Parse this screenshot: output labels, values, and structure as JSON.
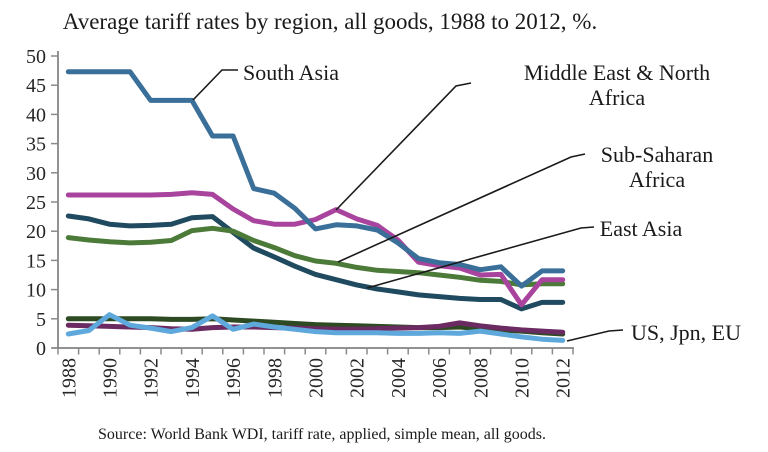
{
  "title": "Average tariff rates by region, all goods, 1988 to 2012, %.",
  "source": "Source: World Bank WDI, tariff rate, applied, simple mean, all goods.",
  "y_axis": {
    "tick_labels": [
      "0",
      "5",
      "10",
      "15",
      "20",
      "25",
      "30",
      "35",
      "40",
      "45",
      "50"
    ],
    "min": 0,
    "max": 50,
    "step": 5
  },
  "x_axis": {
    "tick_labels": [
      "1988",
      "1990",
      "1992",
      "1994",
      "1996",
      "1998",
      "2000",
      "2002",
      "2004",
      "2006",
      "2008",
      "2010",
      "2012"
    ],
    "labels_rotated_degrees": -90
  },
  "annotations": [
    {
      "id": "south_asia",
      "lines": [
        "South Asia"
      ],
      "points_to_series": "South Asia"
    },
    {
      "id": "mena",
      "lines": [
        "Middle East & North",
        "Africa"
      ],
      "points_to_series": "Middle East & North Africa"
    },
    {
      "id": "ssa",
      "lines": [
        "Sub-Saharan",
        "Africa"
      ],
      "points_to_series": "Sub-Saharan Africa"
    },
    {
      "id": "east_asia",
      "lines": [
        "East Asia"
      ],
      "points_to_series": "East Asia"
    },
    {
      "id": "us_jpn_eu",
      "lines": [
        "US, Jpn, EU"
      ],
      "points_to_series": "US, Jpn, EU (cluster of 3 lines)"
    }
  ],
  "chart_data": {
    "type": "line",
    "title": "Average tariff rates by region, all goods, 1988 to 2012, %.",
    "xlabel": "",
    "ylabel": "",
    "xlim": [
      1988,
      2012
    ],
    "ylim": [
      0,
      50
    ],
    "grid": false,
    "legend_position": "direct-labels-with-leader-lines",
    "x": [
      1988,
      1989,
      1990,
      1991,
      1992,
      1993,
      1994,
      1995,
      1996,
      1997,
      1998,
      1999,
      2000,
      2001,
      2002,
      2003,
      2004,
      2005,
      2006,
      2007,
      2008,
      2009,
      2010,
      2011,
      2012
    ],
    "series": [
      {
        "name": "US Jpn EU line a (dark green)",
        "group_label": "US, Jpn, EU",
        "color": "#2D4A22",
        "values": [
          5.0,
          5.0,
          5.0,
          5.0,
          5.0,
          4.9,
          4.9,
          5.0,
          4.8,
          4.6,
          4.4,
          4.2,
          4.0,
          3.9,
          3.8,
          3.7,
          3.6,
          3.5,
          3.5,
          3.6,
          3.3,
          3.1,
          2.9,
          2.6,
          2.4
        ]
      },
      {
        "name": "US Jpn EU line b (dark purple)",
        "group_label": "US, Jpn, EU",
        "color": "#6B2B62",
        "values": [
          3.9,
          3.8,
          3.7,
          3.6,
          3.5,
          3.3,
          3.2,
          3.5,
          3.6,
          3.6,
          3.5,
          3.4,
          3.3,
          3.2,
          3.2,
          3.3,
          3.4,
          3.5,
          3.7,
          4.3,
          3.8,
          3.4,
          3.1,
          2.9,
          2.7
        ]
      },
      {
        "name": "US Jpn EU line c (light blue)",
        "group_label": "US, Jpn, EU",
        "color": "#5FA8DC",
        "values": [
          2.4,
          3.0,
          5.7,
          3.9,
          3.4,
          2.8,
          3.5,
          5.5,
          3.2,
          4.1,
          3.6,
          3.2,
          2.8,
          2.6,
          2.6,
          2.6,
          2.5,
          2.5,
          2.6,
          2.5,
          2.9,
          2.4,
          1.9,
          1.5,
          1.3
        ]
      },
      {
        "name": "East Asia",
        "color": "#1F4A5F",
        "values": [
          22.6,
          22.1,
          21.2,
          20.9,
          21.0,
          21.2,
          22.3,
          22.5,
          19.8,
          17.1,
          15.6,
          14.0,
          12.6,
          11.7,
          10.8,
          10.1,
          9.6,
          9.1,
          8.8,
          8.5,
          8.3,
          8.3,
          6.7,
          7.8,
          7.8
        ]
      },
      {
        "name": "Sub-Saharan Africa",
        "color": "#4C7A38",
        "values": [
          18.9,
          18.5,
          18.2,
          18.0,
          18.1,
          18.4,
          20.1,
          20.5,
          20.0,
          18.4,
          17.2,
          15.8,
          14.9,
          14.5,
          13.8,
          13.3,
          13.1,
          12.9,
          12.5,
          12.1,
          11.6,
          11.4,
          10.8,
          11.0,
          11.0
        ]
      },
      {
        "name": "Middle East & North Africa",
        "color": "#A9449E",
        "values": [
          26.2,
          26.2,
          26.2,
          26.2,
          26.2,
          26.3,
          26.6,
          26.3,
          23.8,
          21.8,
          21.2,
          21.2,
          22.0,
          23.7,
          22.1,
          21.0,
          18.5,
          14.7,
          14.1,
          13.7,
          12.5,
          12.6,
          7.4,
          11.7,
          11.7
        ]
      },
      {
        "name": "South Asia",
        "color": "#3A6F99",
        "values": [
          47.3,
          47.3,
          47.3,
          47.3,
          42.4,
          42.4,
          42.4,
          36.3,
          36.3,
          27.3,
          26.5,
          23.9,
          20.4,
          21.1,
          20.9,
          20.2,
          18.0,
          15.3,
          14.6,
          14.3,
          13.4,
          13.9,
          10.6,
          13.2,
          13.2
        ]
      }
    ]
  }
}
